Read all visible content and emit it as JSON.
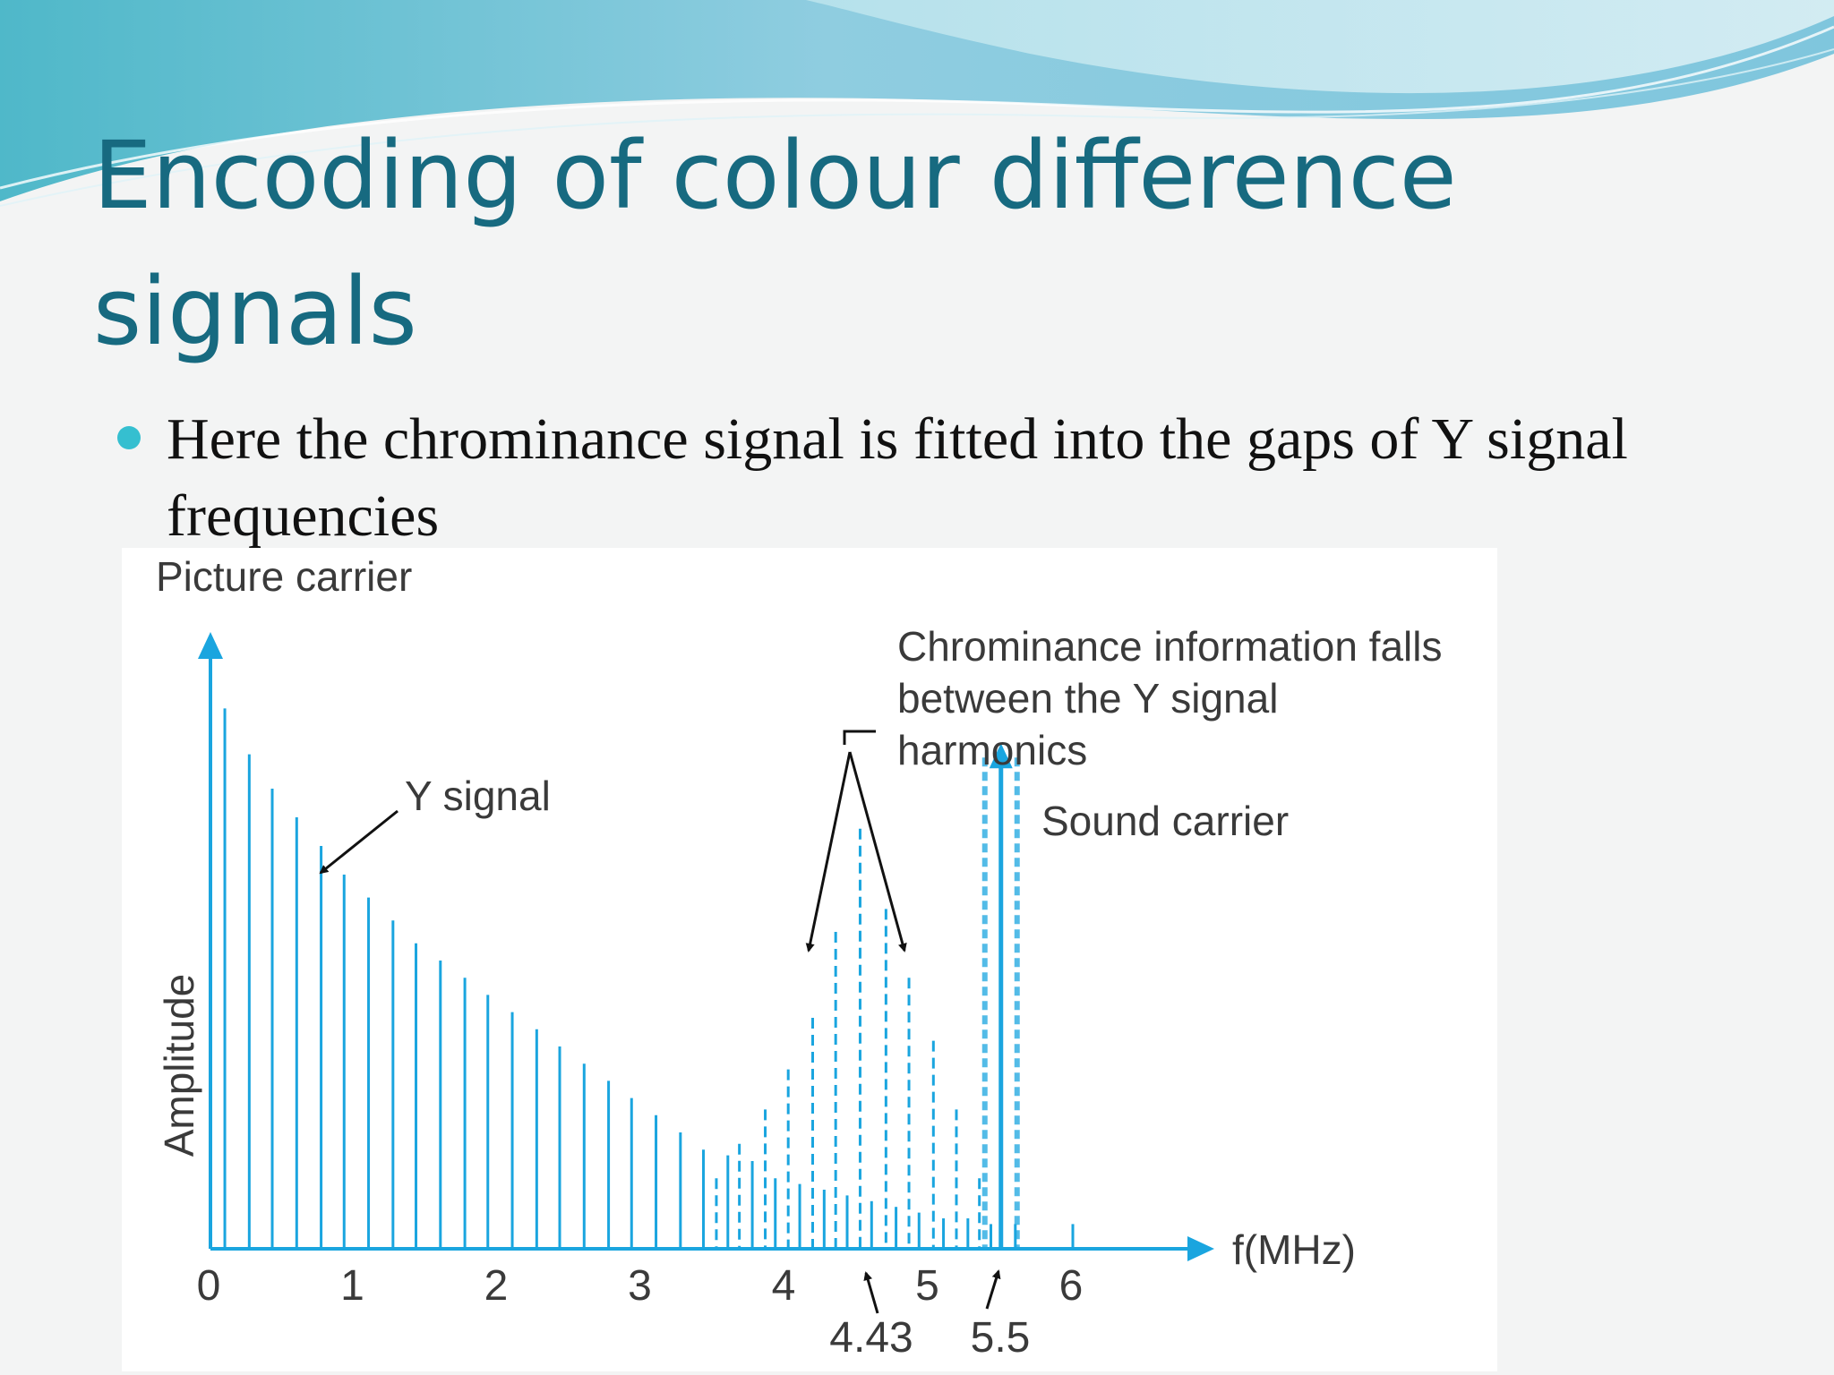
{
  "slide": {
    "title": "Encoding of colour difference signals",
    "bullet": "Here the chrominance signal is fitted into the gaps of Y signal frequencies"
  },
  "colors": {
    "title": "#176a80",
    "bullet": "#35bfd0",
    "spectrum": "#1aa5df",
    "axis": "#1aa5df",
    "text": "#3a3a3a"
  },
  "chart_data": {
    "type": "bar",
    "xlabel": "f(MHz)",
    "ylabel": "Amplitude",
    "x_ticks": [
      "0",
      "1",
      "2",
      "3",
      "4",
      "5",
      "6"
    ],
    "xlim": [
      0,
      7
    ],
    "ylim": [
      0,
      1
    ],
    "marked_frequencies": [
      "4.43",
      "5.5"
    ],
    "labels": {
      "picture_carrier": "Picture carrier",
      "y_signal": "Y signal",
      "chroma_line1": "Chrominance information falls",
      "chroma_line2": "between the Y signal",
      "chroma_line3": "harmonics",
      "sound_carrier": "Sound carrier"
    },
    "series": [
      {
        "name": "Y signal",
        "style": "solid",
        "points": [
          [
            0.1,
            0.94
          ],
          [
            0.27,
            0.86
          ],
          [
            0.43,
            0.8
          ],
          [
            0.6,
            0.75
          ],
          [
            0.77,
            0.7
          ],
          [
            0.93,
            0.65
          ],
          [
            1.1,
            0.61
          ],
          [
            1.27,
            0.57
          ],
          [
            1.43,
            0.53
          ],
          [
            1.6,
            0.5
          ],
          [
            1.77,
            0.47
          ],
          [
            1.93,
            0.44
          ],
          [
            2.1,
            0.41
          ],
          [
            2.27,
            0.38
          ],
          [
            2.43,
            0.35
          ],
          [
            2.6,
            0.32
          ],
          [
            2.77,
            0.29
          ],
          [
            2.93,
            0.26
          ],
          [
            3.1,
            0.23
          ],
          [
            3.27,
            0.2
          ],
          [
            3.43,
            0.17
          ],
          [
            3.6,
            0.16
          ],
          [
            3.77,
            0.15
          ],
          [
            3.93,
            0.12
          ],
          [
            4.1,
            0.11
          ],
          [
            4.27,
            0.1
          ],
          [
            4.43,
            0.09
          ],
          [
            4.6,
            0.08
          ],
          [
            4.77,
            0.07
          ],
          [
            4.93,
            0.06
          ],
          [
            5.1,
            0.05
          ],
          [
            5.27,
            0.05
          ],
          [
            5.43,
            0.04
          ],
          [
            5.6,
            0.04
          ],
          [
            6.0,
            0.04
          ]
        ]
      },
      {
        "name": "Chrominance",
        "style": "dashed",
        "points": [
          [
            3.52,
            0.12
          ],
          [
            3.68,
            0.18
          ],
          [
            3.86,
            0.24
          ],
          [
            4.02,
            0.31
          ],
          [
            4.19,
            0.4
          ],
          [
            4.35,
            0.55
          ],
          [
            4.52,
            0.73
          ],
          [
            4.7,
            0.59
          ],
          [
            4.86,
            0.47
          ],
          [
            5.03,
            0.36
          ],
          [
            5.19,
            0.24
          ],
          [
            5.35,
            0.12
          ]
        ]
      },
      {
        "name": "Sound carrier",
        "style": "carrier",
        "points": [
          [
            5.5,
            0.87
          ]
        ]
      }
    ]
  }
}
